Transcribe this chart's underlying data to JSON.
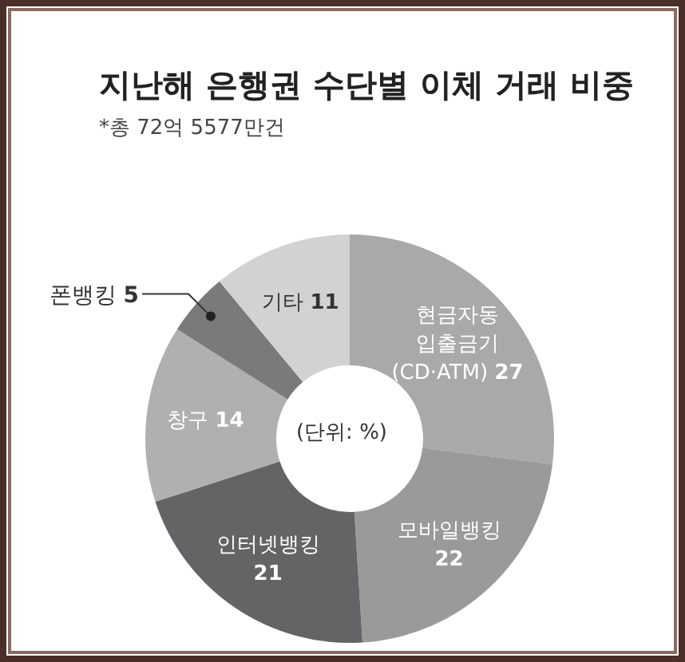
{
  "chart_data": {
    "type": "donut",
    "title": "지난해 은행권 수단별 이체 거래 비중",
    "subtitle": "*총 72억 5577만건",
    "annotations": [
      "(단위: %)"
    ],
    "categories": [
      "현금자동 입출금기 (CD·ATM)",
      "모바일뱅킹",
      "인터넷뱅킹",
      "창구",
      "폰뱅킹",
      "기타"
    ],
    "values": [
      27,
      22,
      21,
      14,
      5,
      11
    ],
    "colors": [
      "#a9a9a9",
      "#9a9a9a",
      "#646466",
      "#b0b0b0",
      "#7a7a7a",
      "#d2d2d2"
    ],
    "data_labels": true,
    "legend": false
  }
}
